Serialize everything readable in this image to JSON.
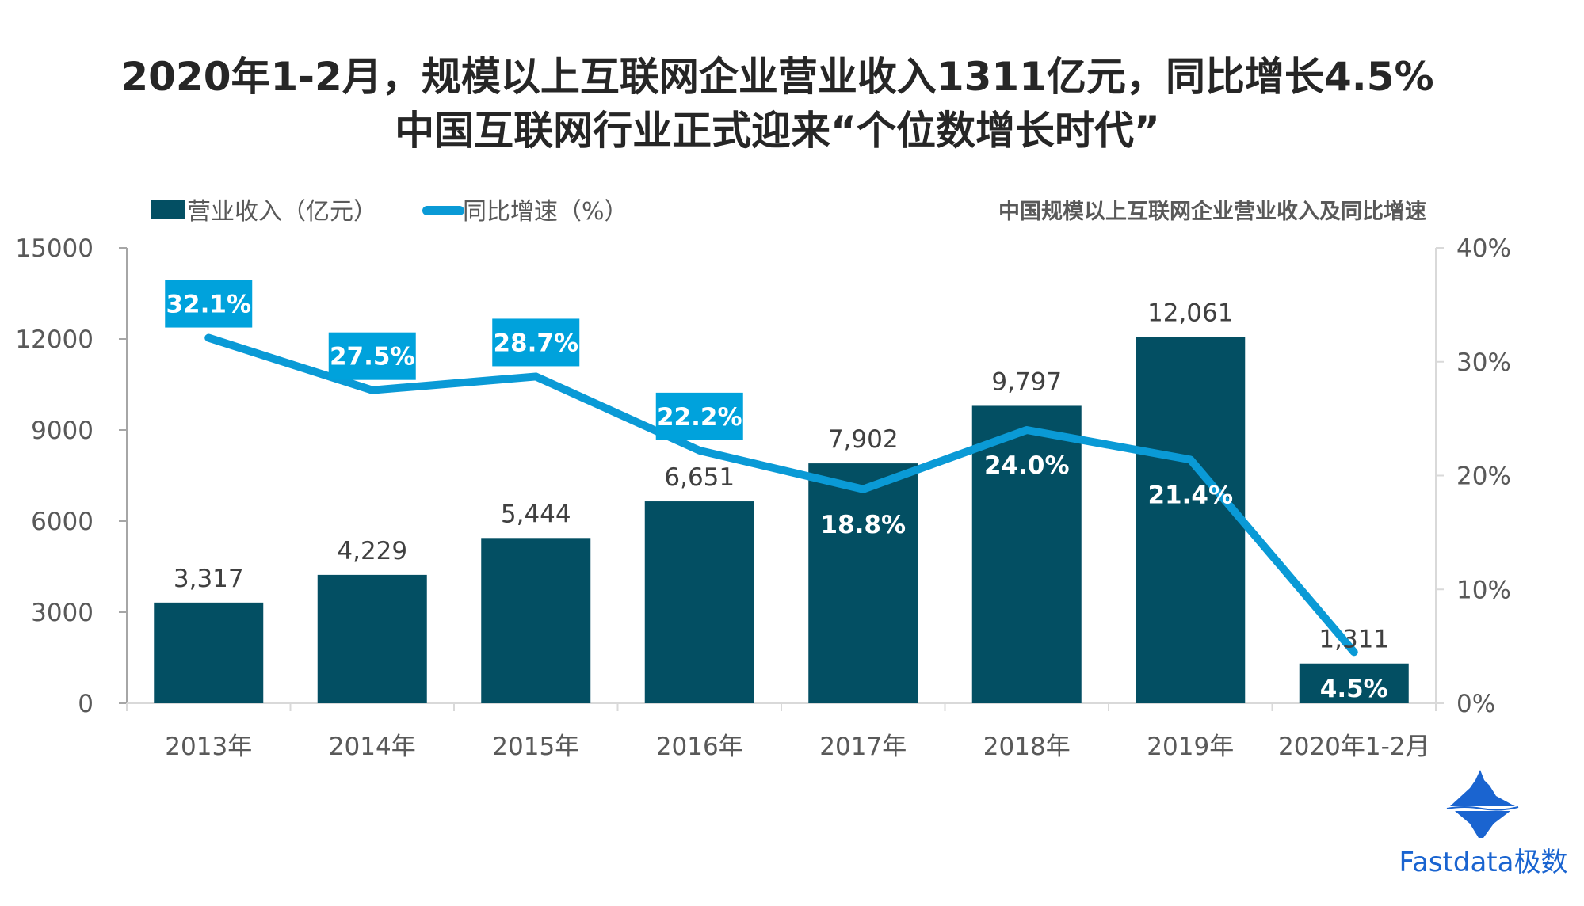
{
  "title_line1": "2020年1-2月，规模以上互联网企业营业收入1311亿元，同比增长4.5%",
  "title_line2": "中国互联网行业正式迎来“个位数增长时代”",
  "logo_text": "Fastdata极数",
  "colors": {
    "bar": "#034f63",
    "line": "#0a9ad6",
    "label_box": "#00a2dc"
  },
  "chart_data": {
    "type": "bar+line",
    "title": "中国规模以上互联网企业营业收入及同比增速",
    "categories": [
      "2013年",
      "2014年",
      "2015年",
      "2016年",
      "2017年",
      "2018年",
      "2019年",
      "2020年1-2月"
    ],
    "series": [
      {
        "name": "营业收入（亿元）",
        "type": "bar",
        "axis": "left",
        "values": [
          3317,
          4229,
          5444,
          6651,
          7902,
          9797,
          12061,
          1311
        ],
        "labels": [
          "3,317",
          "4,229",
          "5,444",
          "6,651",
          "7,902",
          "9,797",
          "12,061",
          "1,311"
        ]
      },
      {
        "name": "同比增速（%）",
        "type": "line",
        "axis": "right",
        "values": [
          32.1,
          27.5,
          28.7,
          22.2,
          18.8,
          24.0,
          21.4,
          4.5
        ],
        "labels": [
          "32.1%",
          "27.5%",
          "28.7%",
          "22.2%",
          "18.8%",
          "24.0%",
          "21.4%",
          "4.5%"
        ],
        "label_style": [
          "box",
          "box",
          "box",
          "box",
          "below",
          "below",
          "below",
          "inside"
        ]
      }
    ],
    "y_left": {
      "range": [
        0,
        15000
      ],
      "ticks": [
        "0",
        "3000",
        "6000",
        "9000",
        "12000",
        "15000"
      ]
    },
    "y_right": {
      "range": [
        0,
        40
      ],
      "ticks": [
        "0%",
        "10%",
        "20%",
        "30%",
        "40%"
      ]
    },
    "legend": "top-left",
    "grid": false
  }
}
